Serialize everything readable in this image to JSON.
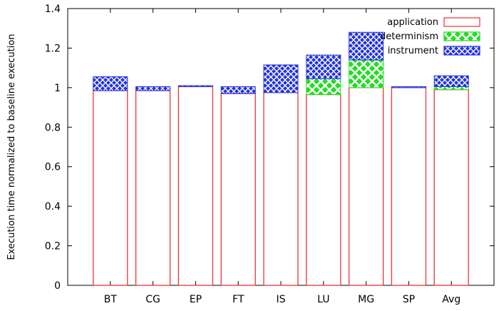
{
  "chart_data": {
    "type": "bar",
    "stacked": true,
    "title": "",
    "xlabel": "",
    "ylabel": "Execution time normalized to baseline execution",
    "ylim": [
      0,
      1.4
    ],
    "yticks": [
      "0",
      "0.2",
      "0.4",
      "0.6",
      "0.8",
      "1",
      "1.2",
      "1.4"
    ],
    "categories": [
      "BT",
      "CG",
      "EP",
      "FT",
      "IS",
      "LU",
      "MG",
      "SP",
      "Avg"
    ],
    "series": [
      {
        "name": "application",
        "pattern": "solid-outline",
        "color": "#ee3333",
        "values": [
          0.985,
          0.985,
          1.005,
          0.97,
          0.975,
          0.965,
          1.0,
          1.0,
          0.99
        ]
      },
      {
        "name": "determinism",
        "pattern": "crosshatch",
        "color": "#22dd22",
        "values": [
          0.0,
          0.0,
          0.0,
          0.0,
          0.0,
          0.08,
          0.14,
          0.0,
          0.015
        ]
      },
      {
        "name": "instrument",
        "pattern": "crosshatch",
        "color": "#2233dd",
        "values": [
          0.07,
          0.02,
          0.005,
          0.035,
          0.14,
          0.12,
          0.14,
          0.005,
          0.055
        ]
      }
    ],
    "grid": false,
    "legend_position": "top-right"
  }
}
